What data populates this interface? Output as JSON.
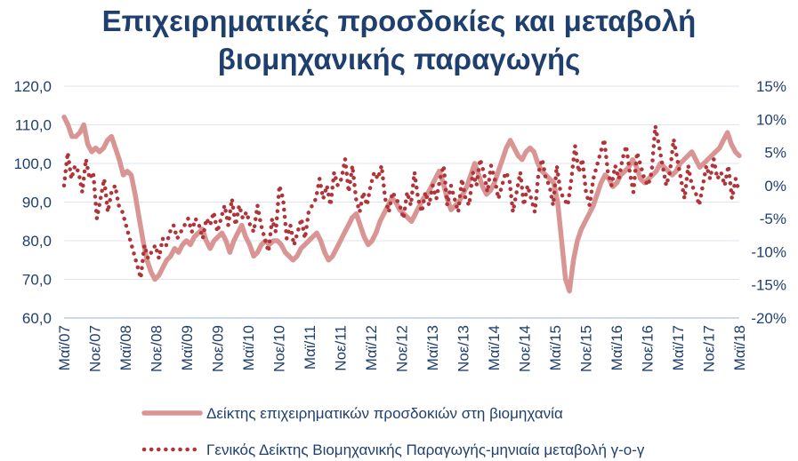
{
  "chart_data": {
    "type": "line",
    "title_lines": [
      "Επιχειρηματικές προσδοκίες και μεταβολή",
      "βιομηχανικής παραγωγής"
    ],
    "xlabel": "",
    "ylabel": "",
    "y_left": {
      "range": [
        60,
        120
      ],
      "ticks": [
        "120,0",
        "110,0",
        "100,0",
        "90,0",
        "80,0",
        "70,0",
        "60,0"
      ]
    },
    "y_right": {
      "range": [
        -20,
        15
      ],
      "ticks": [
        "15%",
        "10%",
        "5%",
        "0%",
        "-5%",
        "-10%",
        "-15%",
        "-20%"
      ]
    },
    "x_ticks": [
      "Μαϊ/07",
      "Νοε/07",
      "Μαϊ/08",
      "Νοε/08",
      "Μαϊ/09",
      "Νοε/09",
      "Μαϊ/10",
      "Νοε/10",
      "Μαϊ/11",
      "Νοε/11",
      "Μαϊ/12",
      "Νοε/12",
      "Μαϊ/13",
      "Νοε/13",
      "Μαϊ/14",
      "Νοε/14",
      "Μαϊ/15",
      "Νοε/15",
      "Μαϊ/16",
      "Νοε/16",
      "Μαϊ/17",
      "Νοε/17",
      "Μαϊ/18"
    ],
    "grid": true,
    "legend_position": "bottom",
    "series": [
      {
        "name": "Δείκτης επιχειρηματικών προσδοκιών στη βιομηχανία",
        "axis": "left",
        "style": "solid",
        "color": "#d99594",
        "values": [
          112,
          110,
          107,
          107,
          108,
          110,
          105,
          103,
          104,
          103,
          104,
          106,
          107,
          104,
          101,
          97,
          98,
          97,
          92,
          86,
          80,
          75,
          72,
          70,
          71,
          73,
          75,
          76,
          78,
          77,
          79,
          80,
          79,
          81,
          82,
          83,
          80,
          78,
          80,
          81,
          82,
          80,
          77,
          80,
          82,
          84,
          81,
          79,
          76,
          77,
          79,
          80,
          79,
          80,
          80,
          79,
          77,
          76,
          75,
          76,
          78,
          79,
          80,
          81,
          82,
          80,
          77,
          75,
          76,
          78,
          80,
          82,
          84,
          86,
          87,
          84,
          81,
          79,
          80,
          82,
          85,
          87,
          89,
          91,
          90,
          88,
          87,
          86,
          85,
          87,
          89,
          91,
          92,
          94,
          96,
          98,
          95,
          91,
          88,
          89,
          90,
          92,
          94,
          97,
          100,
          97,
          94,
          92,
          93,
          95,
          98,
          101,
          104,
          106,
          104,
          102,
          101,
          103,
          104,
          103,
          100,
          98,
          97,
          96,
          95,
          90,
          80,
          70,
          67,
          75,
          80,
          83,
          85,
          87,
          89,
          92,
          95,
          97,
          96,
          94,
          95,
          97,
          98,
          99,
          101,
          99,
          96,
          95,
          96,
          97,
          98,
          100,
          99,
          98,
          97,
          98,
          100,
          101,
          102,
          103,
          101,
          99,
          100,
          101,
          102,
          103,
          104,
          106,
          108,
          105,
          103,
          102
        ]
      },
      {
        "name": "Γενικός Δείκτης Βιομηχανικής Παραγωγής-μηνιαία μεταβολή γ-ο-γ",
        "axis": "right",
        "style": "dotted",
        "color": "#b0353a",
        "values": [
          0,
          5,
          1,
          3,
          2,
          -1,
          4,
          1,
          2,
          -5,
          -2,
          1,
          -4,
          -1,
          0,
          -3,
          -4,
          -6,
          -8,
          -10,
          -12,
          -14,
          -9,
          -11,
          -10,
          -9,
          -11,
          -8,
          -9,
          -7,
          -6,
          -8,
          -7,
          -6,
          -5,
          -7,
          -5,
          -6,
          -8,
          -5,
          -6,
          -4,
          -7,
          -5,
          -3,
          -6,
          -2,
          -6,
          -3,
          -5,
          -4,
          -6,
          -7,
          -3,
          -6,
          -8,
          -10,
          -5,
          -7,
          0,
          -2,
          -8,
          -6,
          -9,
          -7,
          -5,
          -8,
          -4,
          -3,
          -2,
          1,
          -2,
          0,
          -3,
          2,
          0,
          1,
          4,
          -1,
          3,
          -2,
          -4,
          -1,
          -3,
          0,
          2,
          1,
          3,
          -2,
          -4,
          -1,
          -2,
          -3,
          -5,
          -1,
          -3,
          2,
          -2,
          -4,
          -1,
          -3,
          0,
          -2,
          1,
          3,
          -3,
          0,
          -2,
          -4,
          1,
          -2,
          -3,
          2,
          0,
          4,
          2,
          -1,
          3,
          1,
          -2,
          0,
          2,
          1,
          -4,
          -1,
          2,
          -3,
          0,
          -2,
          -4,
          2,
          4,
          1,
          0,
          -3,
          3,
          -1,
          -2,
          -3,
          1,
          6,
          2,
          4,
          -1,
          -3,
          1,
          3,
          5,
          7,
          2,
          0,
          3,
          1,
          4,
          6,
          2,
          -1,
          5,
          3,
          1,
          0,
          2,
          9,
          6,
          3,
          0,
          2,
          7,
          4,
          1,
          -2,
          3,
          0,
          -1,
          -3,
          0,
          3,
          1,
          4,
          1,
          2,
          0,
          3,
          -2,
          1,
          -1
        ]
      }
    ]
  }
}
